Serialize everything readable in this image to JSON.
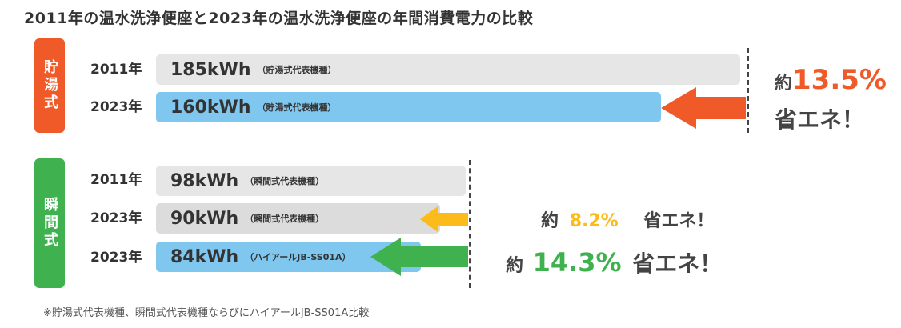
{
  "title": "2011年の温水洗浄便座と2023年の温水洗浄便座の年間消費電力の比較",
  "colors": {
    "storage_tag": "#ef5a28",
    "instant_tag": "#3fb14f",
    "bar_gray": "#e6e6e6",
    "bar_blue": "#7fc7ee",
    "bar_gray_dark": "#dcdcdc",
    "arrow_orange": "#ef5a28",
    "arrow_yellow": "#fbbb1a",
    "arrow_green": "#3fb14f"
  },
  "groups": {
    "storage": {
      "label": "貯湯式"
    },
    "instant": {
      "label": "瞬間式"
    }
  },
  "savings": {
    "storage": {
      "prefix": "約",
      "value": "13.5%",
      "suffix": "省エネ！"
    },
    "instant_a": {
      "prefix": "約",
      "value": "8.2%",
      "suffix": "省エネ！"
    },
    "instant_b": {
      "prefix": "約",
      "value": "14.3%",
      "suffix": "省エネ！"
    }
  },
  "footnote": "※貯湯式代表機種、瞬間式代表機種ならびにハイアールJB-SS01A比較",
  "chart_data": {
    "type": "bar",
    "orientation": "horizontal",
    "unit": "kWh",
    "xlim": [
      0,
      185
    ],
    "rows": [
      {
        "group": "storage",
        "year": "2011年",
        "value": 185,
        "value_label": "185kWh",
        "note": "（貯湯式代表機種）",
        "color": "#e6e6e6"
      },
      {
        "group": "storage",
        "year": "2023年",
        "value": 160,
        "value_label": "160kWh",
        "note": "（貯湯式代表機種）",
        "color": "#7fc7ee"
      },
      {
        "group": "instant",
        "year": "2011年",
        "value": 98,
        "value_label": "98kWh",
        "note": "（瞬間式代表機種）",
        "color": "#e6e6e6"
      },
      {
        "group": "instant",
        "year": "2023年",
        "value": 90,
        "value_label": "90kWh",
        "note": "（瞬間式代表機種）",
        "color": "#dcdcdc"
      },
      {
        "group": "instant",
        "year": "2023年",
        "value": 84,
        "value_label": "84kWh",
        "note": "（ハイアールJB-SS01A）",
        "color": "#7fc7ee"
      }
    ]
  }
}
